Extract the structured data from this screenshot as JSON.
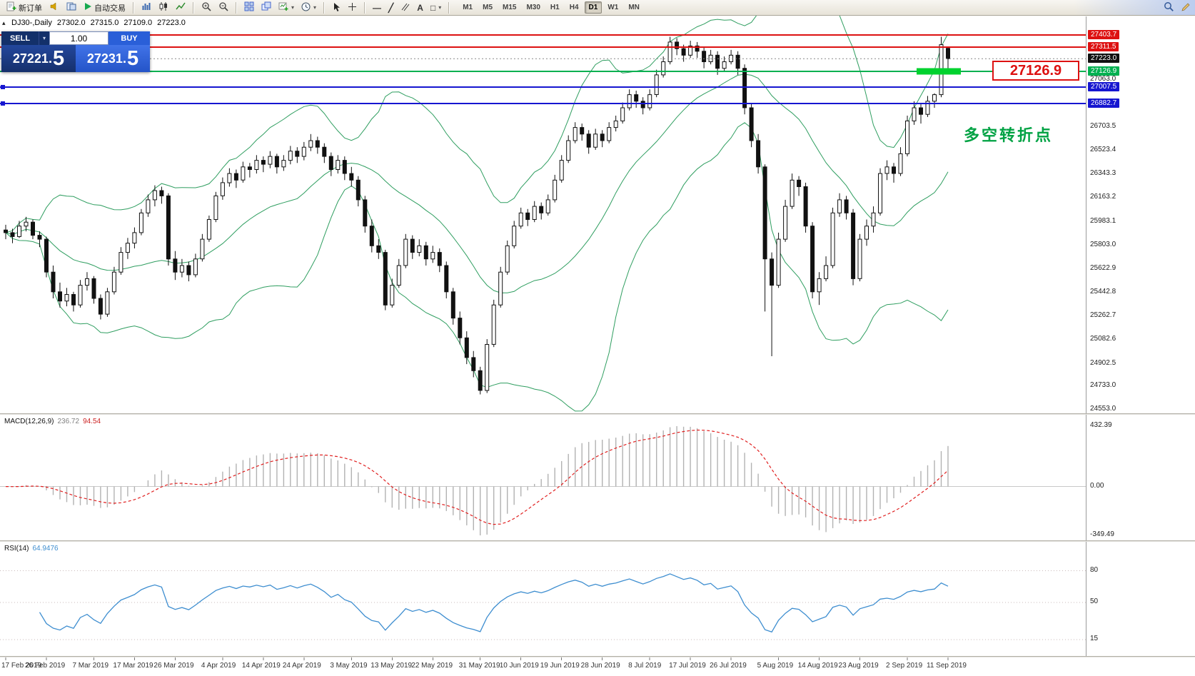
{
  "toolbar": {
    "new_order": "新订单",
    "autotrade": "自动交易",
    "timeframes": [
      "M1",
      "M5",
      "M15",
      "M30",
      "H1",
      "H4",
      "D1",
      "W1",
      "MN"
    ],
    "active_timeframe": "D1"
  },
  "icons": {
    "caret_down": "▾",
    "collapse": "▴",
    "hline": "—",
    "trendline": "╱",
    "text_tool": "A",
    "shapes": "□"
  },
  "symbol_info": {
    "name": "DJ30-,Daily",
    "open": "27302.0",
    "high": "27315.0",
    "low": "27109.0",
    "close": "27223.0"
  },
  "trade_panel": {
    "sell_label": "SELL",
    "buy_label": "BUY",
    "volume": "1.00",
    "sell_price": "27221.5",
    "buy_price": "27231.5"
  },
  "annotations": {
    "level_label": "27126.9",
    "turning_point": "多空转折点"
  },
  "colors": {
    "resistance_line": "#dd1111",
    "pivot_line": "#00b050",
    "support_line": "#1616d0",
    "zone_marker": "#00d22e",
    "turning_point_text": "#00a243",
    "level_label_text": "#dd1111",
    "bollinger": "#2f9e60",
    "macd_histogram": "#b2b2b2",
    "macd_signal": "#e02020",
    "rsi_line": "#3e8ed0"
  },
  "chart_data": {
    "type": "candlestick",
    "symbol": "DJ30",
    "timeframe": "Daily",
    "ohlc": [
      [
        25920,
        25960,
        25850,
        25900
      ],
      [
        25900,
        25930,
        25820,
        25870
      ],
      [
        25870,
        25990,
        25860,
        25950
      ],
      [
        25950,
        26020,
        25910,
        25980
      ],
      [
        25980,
        26000,
        25850,
        25880
      ],
      [
        25880,
        25910,
        25790,
        25850
      ],
      [
        25850,
        25870,
        25560,
        25600
      ],
      [
        25600,
        25650,
        25400,
        25450
      ],
      [
        25450,
        25520,
        25330,
        25380
      ],
      [
        25380,
        25480,
        25340,
        25430
      ],
      [
        25430,
        25450,
        25300,
        25350
      ],
      [
        25350,
        25540,
        25330,
        25500
      ],
      [
        25500,
        25600,
        25460,
        25550
      ],
      [
        25550,
        25570,
        25360,
        25400
      ],
      [
        25400,
        25430,
        25240,
        25280
      ],
      [
        25280,
        25480,
        25260,
        25450
      ],
      [
        25450,
        25640,
        25430,
        25600
      ],
      [
        25600,
        25790,
        25580,
        25750
      ],
      [
        25750,
        25860,
        25700,
        25820
      ],
      [
        25820,
        25940,
        25780,
        25900
      ],
      [
        25900,
        26080,
        25880,
        26050
      ],
      [
        26050,
        26190,
        26020,
        26150
      ],
      [
        26150,
        26260,
        26100,
        26220
      ],
      [
        26220,
        26250,
        26120,
        26180
      ],
      [
        26180,
        26200,
        25650,
        25700
      ],
      [
        25700,
        25760,
        25540,
        25600
      ],
      [
        25600,
        25700,
        25560,
        25650
      ],
      [
        25650,
        25680,
        25530,
        25580
      ],
      [
        25580,
        25740,
        25560,
        25700
      ],
      [
        25700,
        25890,
        25680,
        25850
      ],
      [
        25850,
        26030,
        25830,
        26000
      ],
      [
        26000,
        26210,
        25980,
        26180
      ],
      [
        26180,
        26320,
        26150,
        26280
      ],
      [
        26280,
        26390,
        26250,
        26350
      ],
      [
        26350,
        26380,
        26240,
        26300
      ],
      [
        26300,
        26440,
        26280,
        26400
      ],
      [
        26400,
        26430,
        26320,
        26380
      ],
      [
        26380,
        26490,
        26350,
        26450
      ],
      [
        26450,
        26480,
        26360,
        26420
      ],
      [
        26420,
        26520,
        26390,
        26480
      ],
      [
        26480,
        26500,
        26350,
        26400
      ],
      [
        26400,
        26490,
        26370,
        26450
      ],
      [
        26450,
        26560,
        26420,
        26520
      ],
      [
        26520,
        26550,
        26430,
        26480
      ],
      [
        26480,
        26590,
        26450,
        26550
      ],
      [
        26550,
        26650,
        26520,
        26600
      ],
      [
        26600,
        26630,
        26500,
        26550
      ],
      [
        26550,
        26580,
        26430,
        26480
      ],
      [
        26480,
        26510,
        26330,
        26380
      ],
      [
        26380,
        26490,
        26350,
        26450
      ],
      [
        26450,
        26480,
        26300,
        26350
      ],
      [
        26350,
        26400,
        26250,
        26300
      ],
      [
        26300,
        26330,
        26100,
        26150
      ],
      [
        26150,
        26180,
        25900,
        25950
      ],
      [
        25950,
        26000,
        25750,
        25800
      ],
      [
        25800,
        25850,
        25700,
        25750
      ],
      [
        25750,
        25770,
        25310,
        25350
      ],
      [
        25350,
        25550,
        25330,
        25500
      ],
      [
        25500,
        25700,
        25480,
        25650
      ],
      [
        25650,
        25890,
        25630,
        25850
      ],
      [
        25850,
        25880,
        25700,
        25750
      ],
      [
        25750,
        25850,
        25720,
        25800
      ],
      [
        25800,
        25830,
        25650,
        25700
      ],
      [
        25700,
        25800,
        25670,
        25750
      ],
      [
        25750,
        25780,
        25600,
        25650
      ],
      [
        25650,
        25680,
        25400,
        25450
      ],
      [
        25450,
        25480,
        25200,
        25250
      ],
      [
        25250,
        25300,
        25050,
        25100
      ],
      [
        25100,
        25150,
        24900,
        24950
      ],
      [
        24950,
        25000,
        24800,
        24850
      ],
      [
        24850,
        24880,
        24670,
        24700
      ],
      [
        24700,
        25090,
        24680,
        25050
      ],
      [
        25050,
        25390,
        25030,
        25350
      ],
      [
        25350,
        25640,
        25330,
        25600
      ],
      [
        25600,
        25840,
        25580,
        25800
      ],
      [
        25800,
        25990,
        25780,
        25950
      ],
      [
        25950,
        26090,
        25930,
        26050
      ],
      [
        26050,
        26080,
        25950,
        26000
      ],
      [
        26000,
        26140,
        25980,
        26100
      ],
      [
        26100,
        26130,
        26000,
        26050
      ],
      [
        26050,
        26190,
        26030,
        26150
      ],
      [
        26150,
        26340,
        26130,
        26300
      ],
      [
        26300,
        26490,
        26280,
        26450
      ],
      [
        26450,
        26640,
        26430,
        26600
      ],
      [
        26600,
        26740,
        26580,
        26700
      ],
      [
        26700,
        26730,
        26600,
        26650
      ],
      [
        26650,
        26680,
        26500,
        26550
      ],
      [
        26550,
        26690,
        26530,
        26650
      ],
      [
        26650,
        26680,
        26550,
        26600
      ],
      [
        26600,
        26740,
        26580,
        26700
      ],
      [
        26700,
        26790,
        26670,
        26750
      ],
      [
        26750,
        26890,
        26730,
        26850
      ],
      [
        26850,
        26990,
        26830,
        26950
      ],
      [
        26950,
        26980,
        26850,
        26900
      ],
      [
        26900,
        26930,
        26800,
        26850
      ],
      [
        26850,
        26990,
        26830,
        26950
      ],
      [
        26950,
        27140,
        26930,
        27100
      ],
      [
        27100,
        27240,
        27080,
        27200
      ],
      [
        27200,
        27390,
        27180,
        27350
      ],
      [
        27350,
        27380,
        27250,
        27300
      ],
      [
        27300,
        27330,
        27200,
        27250
      ],
      [
        27250,
        27360,
        27230,
        27320
      ],
      [
        27320,
        27350,
        27230,
        27280
      ],
      [
        27280,
        27310,
        27150,
        27200
      ],
      [
        27200,
        27290,
        27180,
        27250
      ],
      [
        27250,
        27280,
        27100,
        27150
      ],
      [
        27150,
        27240,
        27130,
        27200
      ],
      [
        27200,
        27290,
        27180,
        27250
      ],
      [
        27250,
        27280,
        27100,
        27150
      ],
      [
        27150,
        27180,
        26800,
        26850
      ],
      [
        26850,
        26880,
        26550,
        26600
      ],
      [
        26600,
        26650,
        26350,
        26400
      ],
      [
        26400,
        26420,
        25300,
        25700
      ],
      [
        25700,
        25750,
        24960,
        25500
      ],
      [
        25500,
        25900,
        25480,
        25850
      ],
      [
        25850,
        26150,
        25830,
        26100
      ],
      [
        26100,
        26350,
        26080,
        26300
      ],
      [
        26300,
        26330,
        26180,
        26250
      ],
      [
        26250,
        26280,
        25900,
        25950
      ],
      [
        25950,
        25980,
        25400,
        25450
      ],
      [
        25450,
        25600,
        25350,
        25550
      ],
      [
        25550,
        25720,
        25530,
        25650
      ],
      [
        25650,
        26090,
        25630,
        26050
      ],
      [
        26050,
        26200,
        26020,
        26150
      ],
      [
        26150,
        26180,
        26000,
        26050
      ],
      [
        26050,
        26080,
        25500,
        25550
      ],
      [
        25550,
        25890,
        25530,
        25850
      ],
      [
        25850,
        26000,
        25800,
        25950
      ],
      [
        25950,
        26100,
        25900,
        26050
      ],
      [
        26050,
        26390,
        26030,
        26350
      ],
      [
        26350,
        26450,
        26300,
        26400
      ],
      [
        26400,
        26430,
        26280,
        26350
      ],
      [
        26350,
        26550,
        26330,
        26500
      ],
      [
        26500,
        26790,
        26480,
        26750
      ],
      [
        26750,
        26900,
        26720,
        26850
      ],
      [
        26850,
        26880,
        26730,
        26800
      ],
      [
        26800,
        26940,
        26780,
        26900
      ],
      [
        26900,
        26960,
        26850,
        26950
      ],
      [
        26950,
        27390,
        26930,
        27330
      ],
      [
        27302,
        27315,
        27109,
        27223
      ]
    ],
    "x_labels": [
      "17 Feb 2019",
      "26 Feb 2019",
      "7 Mar 2019",
      "17 Mar 2019",
      "26 Mar 2019",
      "4 Apr 2019",
      "14 Apr 2019",
      "24 Apr 2019",
      "3 May 2019",
      "13 May 2019",
      "22 May 2019",
      "31 May 2019",
      "10 Jun 2019",
      "19 Jun 2019",
      "28 Jun 2019",
      "8 Jul 2019",
      "17 Jul 2019",
      "26 Jul 2019",
      "5 Aug 2019",
      "14 Aug 2019",
      "23 Aug 2019",
      "2 Sep 2019",
      "11 Sep 2019"
    ],
    "y_axis": {
      "plain_ticks": [
        27063.0,
        26703.5,
        26523.4,
        26343.3,
        26163.2,
        25983.1,
        25803.0,
        25622.9,
        25442.8,
        25262.7,
        25082.6,
        24902.5,
        24733.0,
        24553.0
      ]
    },
    "levels": [
      {
        "price": 27403.7,
        "color": "#dd1111",
        "type": "resistance"
      },
      {
        "price": 27311.5,
        "color": "#dd1111",
        "type": "resistance"
      },
      {
        "price": 27126.9,
        "color": "#00b050",
        "type": "pivot"
      },
      {
        "price": 27007.5,
        "color": "#1616d0",
        "type": "support"
      },
      {
        "price": 26882.7,
        "color": "#1616d0",
        "type": "support"
      }
    ],
    "current_price": 27223.0,
    "zone": {
      "price": 27126.9,
      "color": "#00d22e"
    },
    "bollinger": {
      "period": 20,
      "deviation": 2,
      "color": "#2f9e60"
    },
    "indicators": [
      {
        "name": "MACD",
        "label": "MACD(12,26,9)",
        "values": [
          "236.72",
          "94.54"
        ],
        "axis_max": 432.39,
        "axis_zero": "0.00",
        "axis_min": -349.49,
        "params": [
          12,
          26,
          9
        ]
      },
      {
        "name": "RSI",
        "label": "RSI(14)",
        "value": "64.9476",
        "levels": [
          80,
          50,
          15
        ],
        "period": 14
      }
    ]
  }
}
